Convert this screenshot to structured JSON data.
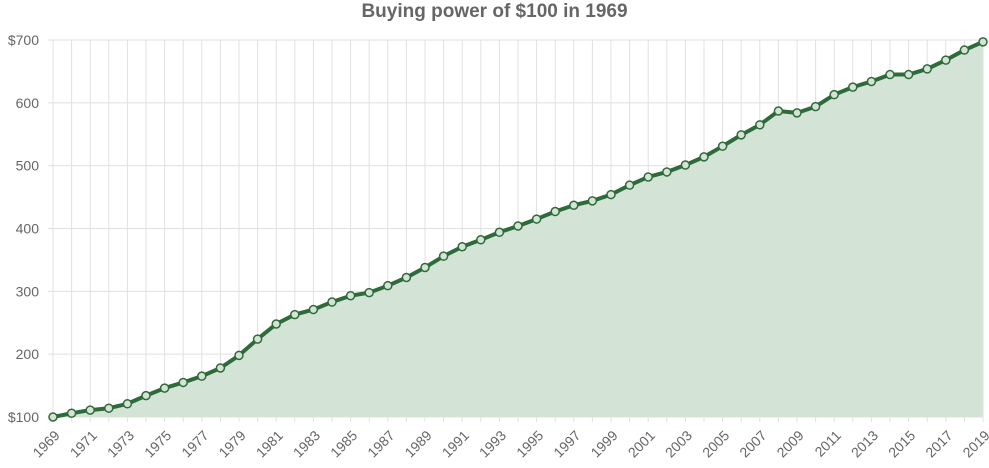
{
  "chart_data": {
    "type": "area",
    "title": "Buying power of $100 in 1969",
    "x": [
      1969,
      1970,
      1971,
      1972,
      1973,
      1974,
      1975,
      1976,
      1977,
      1978,
      1979,
      1980,
      1981,
      1982,
      1983,
      1984,
      1985,
      1986,
      1987,
      1988,
      1989,
      1990,
      1991,
      1992,
      1993,
      1994,
      1995,
      1996,
      1997,
      1998,
      1999,
      2000,
      2001,
      2002,
      2003,
      2004,
      2005,
      2006,
      2007,
      2008,
      2009,
      2010,
      2011,
      2012,
      2013,
      2014,
      2015,
      2016,
      2017,
      2018,
      2019
    ],
    "values": [
      100,
      106,
      111,
      114,
      121,
      134,
      146,
      155,
      165,
      178,
      198,
      224,
      248,
      263,
      271,
      283,
      293,
      298,
      309,
      322,
      338,
      356,
      371,
      382,
      394,
      404,
      415,
      427,
      437,
      444,
      454,
      469,
      482,
      490,
      501,
      514,
      531,
      549,
      565,
      587,
      584,
      594,
      613,
      625,
      634,
      645,
      645,
      654,
      668,
      684,
      697
    ],
    "x_tick_labels": [
      "1969",
      "1971",
      "1973",
      "1975",
      "1977",
      "1979",
      "1981",
      "1983",
      "1985",
      "1987",
      "1989",
      "1991",
      "1993",
      "1995",
      "1997",
      "1999",
      "2001",
      "2003",
      "2005",
      "2007",
      "2009",
      "2011",
      "2013",
      "2015",
      "2017",
      "2019"
    ],
    "y_tick_labels": [
      "$100",
      "200",
      "300",
      "400",
      "500",
      "600",
      "$700"
    ],
    "y_ticks": [
      100,
      200,
      300,
      400,
      500,
      600,
      700
    ],
    "ylim": [
      100,
      700
    ],
    "grid": true,
    "line_color": "#2e6b3a",
    "fill_color": "#d3e3d5",
    "tick_label_color": "#666666",
    "grid_color": "#e0e0e0"
  }
}
